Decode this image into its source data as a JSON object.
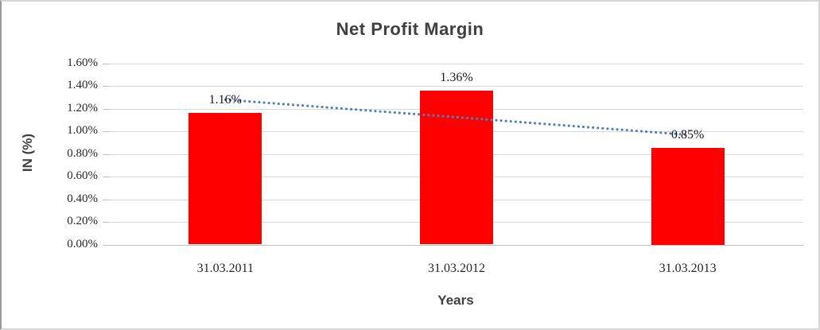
{
  "chart_data": {
    "type": "bar",
    "title": "Net Profit Margin",
    "categories": [
      "31.03.2011",
      "31.03.2012",
      "31.03.2013"
    ],
    "values": [
      1.16,
      1.36,
      0.85
    ],
    "data_labels": [
      "1.16%",
      "1.36%",
      "0.85%"
    ],
    "xlabel": "Years",
    "ylabel": "IN (%)",
    "ylim": [
      0,
      1.6
    ],
    "ytick_step": 0.2,
    "ytick_labels": [
      "0.00%",
      "0.20%",
      "0.40%",
      "0.60%",
      "0.80%",
      "1.00%",
      "1.20%",
      "1.40%",
      "1.60%"
    ],
    "grid": true,
    "legend": "none",
    "colors": {
      "bar": "#FF0000",
      "trendline": "#4F81BD",
      "gridline": "#D9D9D9",
      "axis_line": "#BFBFBF",
      "title_text": "#404040",
      "tick_text": "#262626"
    },
    "trendline": {
      "type": "linear",
      "style": "dotted"
    }
  }
}
